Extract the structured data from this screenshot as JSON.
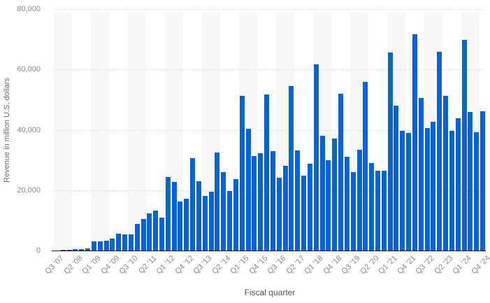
{
  "chart_data": {
    "type": "bar",
    "title": "",
    "xlabel": "Fiscal quarter",
    "ylabel": "Revenue in million U.S. dollars",
    "ylim": [
      0,
      80000
    ],
    "y_ticks": [
      {
        "value": 0,
        "label": "0"
      },
      {
        "value": 20000,
        "label": "20,000"
      },
      {
        "value": 40000,
        "label": "40,000"
      },
      {
        "value": 60000,
        "label": "60,000"
      },
      {
        "value": 80000,
        "label": "80,000"
      }
    ],
    "grid": "horizontal-dotted",
    "legend": "none",
    "background_stripes": "alternating vertical bands, one band per 3 quarters, starting shaded",
    "x_tick_every": 3,
    "x_tick_labels": [
      "Q3 '07",
      "Q2 '08",
      "Q1 '09",
      "Q4 '09",
      "Q3 '10",
      "Q2 '11",
      "Q1 '12",
      "Q4 '12",
      "Q3 '13",
      "Q2 '14",
      "Q1 '15",
      "Q4 '15",
      "Q3 '16",
      "Q2 '17",
      "Q1 '18",
      "Q4 '18",
      "Q3 '19",
      "Q2 '20",
      "Q1 '21",
      "Q4 '21",
      "Q3 '22",
      "Q2 '23",
      "Q1 '24",
      "Q4 '24"
    ],
    "categories": [
      "Q3 '07",
      "Q4 '07",
      "Q1 '08",
      "Q2 '08",
      "Q3 '08",
      "Q4 '08",
      "Q1 '09",
      "Q2 '09",
      "Q3 '09",
      "Q4 '09",
      "Q1 '10",
      "Q2 '10",
      "Q3 '10",
      "Q4 '10",
      "Q1 '11",
      "Q2 '11",
      "Q3 '11",
      "Q4 '11",
      "Q1 '12",
      "Q2 '12",
      "Q3 '12",
      "Q4 '12",
      "Q1 '13",
      "Q2 '13",
      "Q3 '13",
      "Q4 '13",
      "Q1 '14",
      "Q2 '14",
      "Q3 '14",
      "Q4 '14",
      "Q1 '15",
      "Q2 '15",
      "Q3 '15",
      "Q4 '15",
      "Q1 '16",
      "Q2 '16",
      "Q3 '16",
      "Q4 '16",
      "Q1 '17",
      "Q2 '17",
      "Q3 '17",
      "Q4 '17",
      "Q1 '18",
      "Q2 '18",
      "Q3 '18",
      "Q4 '18",
      "Q1 '19",
      "Q2 '19",
      "Q3 '19",
      "Q4 '19",
      "Q1 '20",
      "Q2 '20",
      "Q3 '20",
      "Q4 '20",
      "Q1 '21",
      "Q2 '21",
      "Q3 '21",
      "Q4 '21",
      "Q1 '22",
      "Q2 '22",
      "Q3 '22",
      "Q4 '22",
      "Q1 '23",
      "Q2 '23",
      "Q3 '23",
      "Q4 '23",
      "Q1 '24",
      "Q2 '24",
      "Q3 '24",
      "Q4 '24"
    ],
    "values": [
      5,
      118,
      241,
      378,
      419,
      806,
      2940,
      3057,
      3204,
      3832,
      5578,
      5445,
      5334,
      8822,
      10468,
      12298,
      13311,
      10980,
      24417,
      22690,
      16245,
      17125,
      30660,
      22955,
      18154,
      19510,
      32498,
      26064,
      19751,
      23678,
      51182,
      40282,
      31368,
      32209,
      51635,
      32857,
      24048,
      28160,
      54378,
      33249,
      24846,
      28846,
      61576,
      38032,
      29906,
      37185,
      51982,
      31051,
      25986,
      33362,
      55957,
      28962,
      26418,
      26444,
      65597,
      47938,
      39570,
      38868,
      71628,
      50570,
      40665,
      42626,
      65775,
      51334,
      39669,
      43805,
      69702,
      45963,
      39296,
      46222
    ],
    "colors": {
      "bar": "#0564d1",
      "stripe": "#f7f7f7",
      "gridline": "#cbcbcb",
      "axis_line": "#151515",
      "tick_text": "#8c8c8c",
      "axis_title_text": "#555555",
      "background": "#ffffff"
    }
  }
}
